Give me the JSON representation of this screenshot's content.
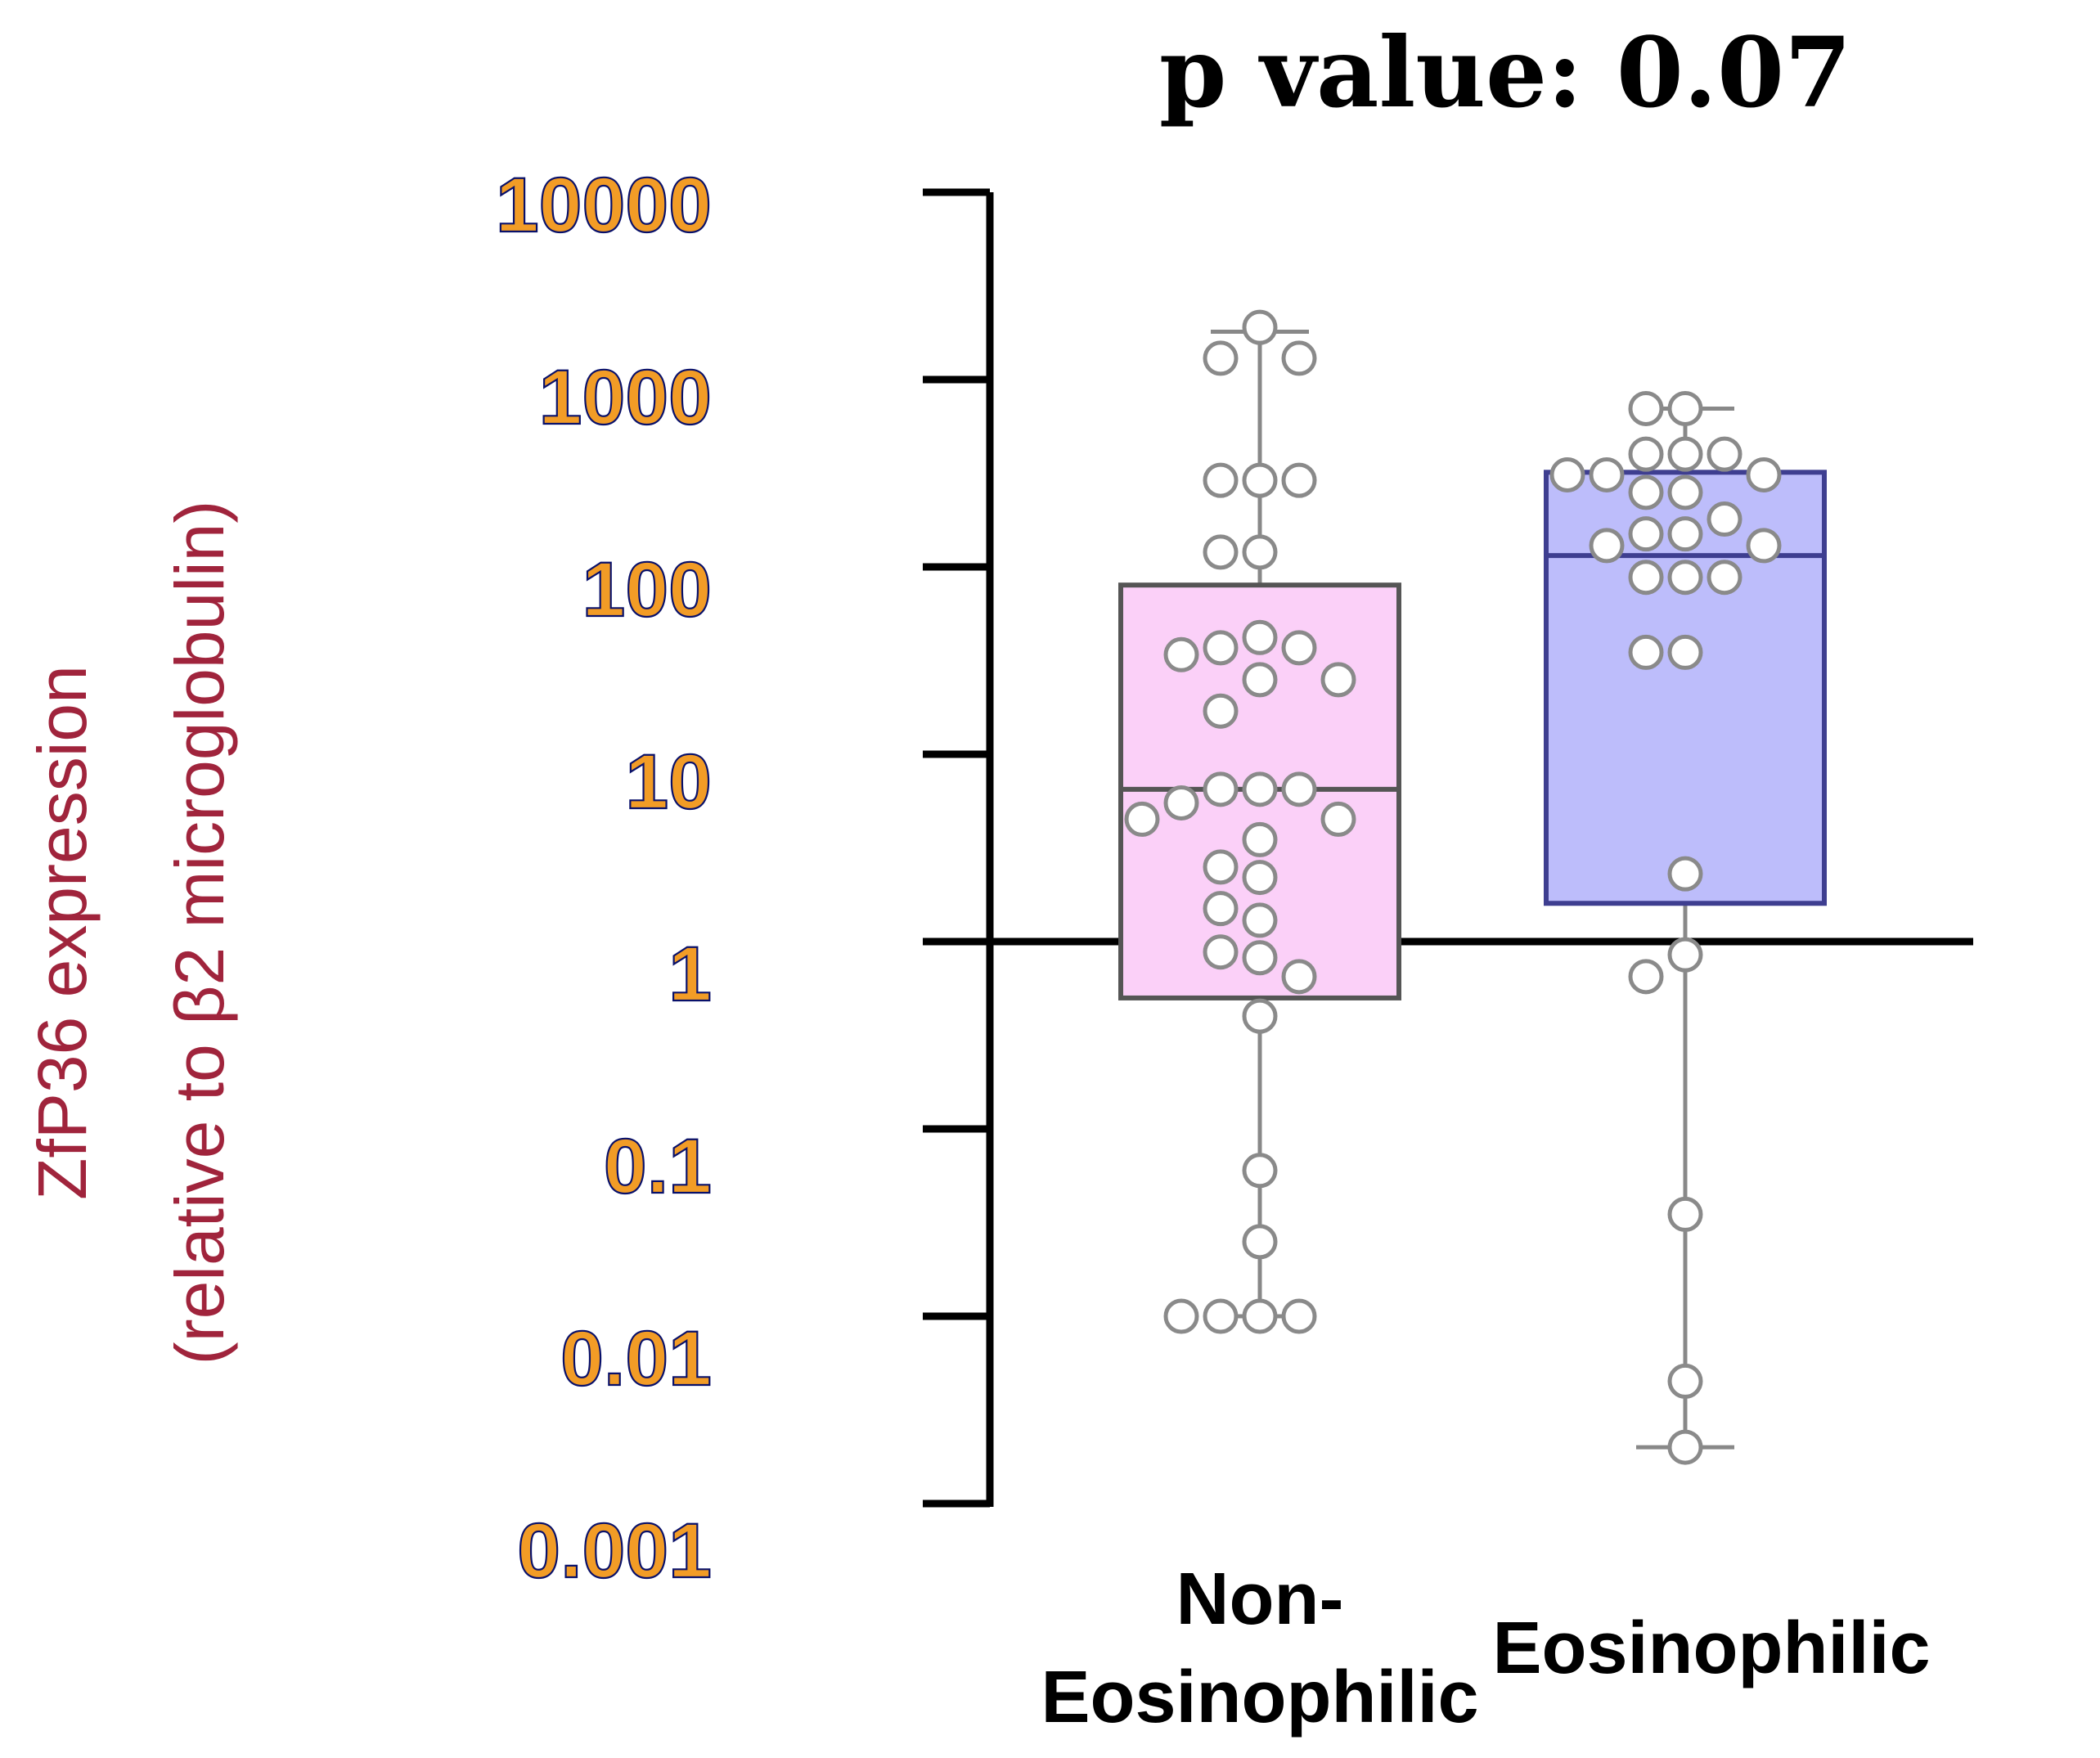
{
  "chart_data": {
    "type": "box",
    "title": "p value: 0.07",
    "ylabel": "ZfP36 expression",
    "ylabel_sub": "(relative to β2 microglobulin)",
    "yscale": "log",
    "ylim": [
      0.001,
      10000
    ],
    "yticks": [
      "10000",
      "1000",
      "100",
      "10",
      "1",
      "0.1",
      "0.01",
      "0.001"
    ],
    "ytick_values": [
      10000,
      1000,
      100,
      10,
      1,
      0.1,
      0.01,
      0.001
    ],
    "baseline": 1,
    "categories": [
      {
        "line1": "Non-",
        "line2": "Eosinophilic"
      },
      {
        "line1": "",
        "line2": "Eosinophilic"
      }
    ],
    "series": [
      {
        "fill": "#fbd0f8",
        "stroke": "#555555",
        "whisker_low": 0.01,
        "q1": 0.5,
        "median": 6.5,
        "q3": 80,
        "whisker_high": 1800,
        "points": [
          1900,
          1300,
          1300,
          290,
          290,
          290,
          120,
          120,
          42,
          37,
          37,
          34,
          25,
          25,
          17,
          6.5,
          6.5,
          6.5,
          5.5,
          4.5,
          4.5,
          3.5,
          2.5,
          2.2,
          1.5,
          1.3,
          0.88,
          0.82,
          0.65,
          0.4,
          0.06,
          0.025,
          0.01,
          0.01,
          0.01,
          0.01
        ]
      },
      {
        "fill": "#bdbdfb",
        "stroke": "#3e3e90",
        "whisker_low": 0.002,
        "q1": 1.6,
        "median": 115,
        "q3": 320,
        "whisker_high": 700,
        "points": [
          700,
          700,
          400,
          400,
          400,
          310,
          310,
          310,
          250,
          250,
          180,
          150,
          150,
          130,
          130,
          88,
          88,
          88,
          35,
          35,
          2.3,
          0.85,
          0.65,
          0.035,
          0.0045,
          0.002
        ]
      }
    ]
  }
}
